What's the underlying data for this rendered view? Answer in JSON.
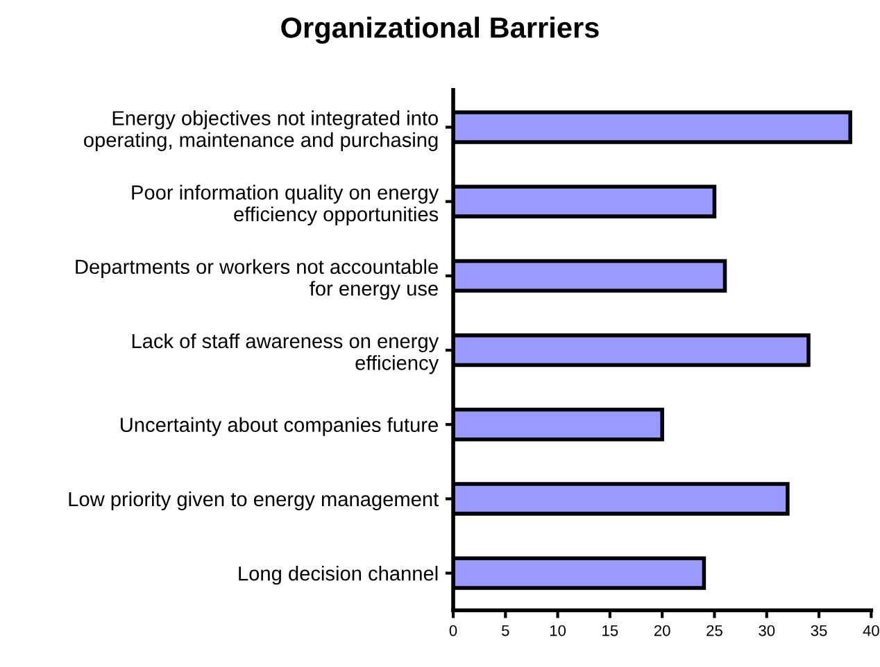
{
  "chart_data": {
    "type": "bar",
    "orientation": "horizontal",
    "title": "Organizational Barriers",
    "categories": [
      "Energy objectives not integrated into\noperating, maintenance and purchasing",
      "Poor information quality on energy\nefficiency opportunities",
      "Departments or workers not accountable\nfor energy use",
      "Lack of staff awareness on energy\nefficiency",
      "Uncertainty about companies future",
      "Low priority given to energy management",
      "Long decision channel"
    ],
    "values": [
      38,
      25,
      26,
      34,
      20,
      32,
      24
    ],
    "color": "#9999ff",
    "xlim": [
      0,
      40
    ],
    "xticks": [
      0,
      5,
      10,
      15,
      20,
      25,
      30,
      35,
      40
    ],
    "grid": false,
    "legend": false
  }
}
